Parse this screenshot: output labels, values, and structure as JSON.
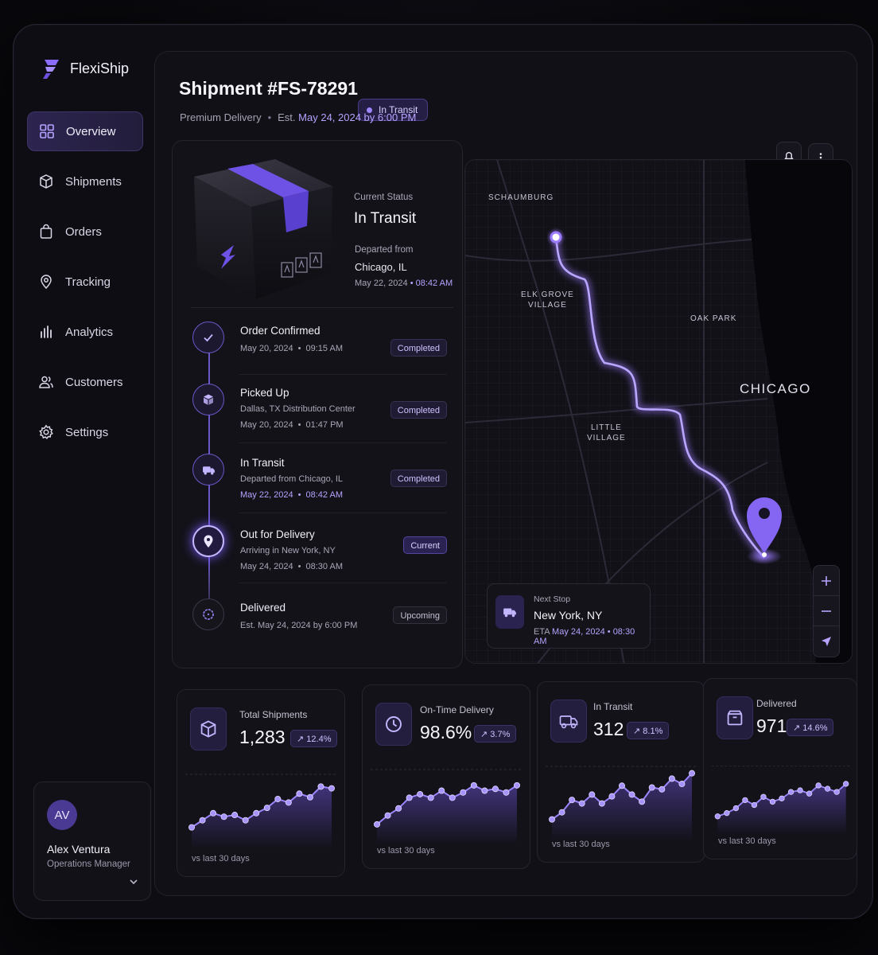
{
  "brand": {
    "name": "FlexiShip"
  },
  "nav": [
    {
      "label": "Overview",
      "icon": "grid-icon",
      "active": true
    },
    {
      "label": "Shipments",
      "icon": "cube-icon"
    },
    {
      "label": "Orders",
      "icon": "bag-icon"
    },
    {
      "label": "Tracking",
      "icon": "location-pin-icon"
    },
    {
      "label": "Analytics",
      "icon": "bar-chart-icon"
    },
    {
      "label": "Customers",
      "icon": "users-icon"
    },
    {
      "label": "Settings",
      "icon": "gear-icon"
    }
  ],
  "user": {
    "initials": "AV",
    "name": "Alex Ventura",
    "role": "Operations Manager"
  },
  "header": {
    "title": "Shipment #FS-78291",
    "status_badge": "In Transit",
    "service": "Premium Delivery",
    "est_prefix": "Est.",
    "est_date": "May 24, 2024 by 6:00 PM"
  },
  "summary": {
    "current_status_label": "Current Status",
    "current_status": "In Transit",
    "departed_label": "Departed from",
    "departed_city": "Chicago, IL",
    "departed_date": "May 22, 2024",
    "departed_time": "08:42 AM"
  },
  "timeline": [
    {
      "title": "Order Confirmed",
      "sub": "",
      "date": "May 20, 2024",
      "time": "09:15 AM",
      "badge": "Completed",
      "state": "completed",
      "icon": "check-icon"
    },
    {
      "title": "Picked Up",
      "sub": "Dallas, TX Distribution Center",
      "date": "May 20, 2024",
      "time": "01:47 PM",
      "badge": "Completed",
      "state": "completed",
      "icon": "package-icon"
    },
    {
      "title": "In Transit",
      "sub": "Departed from Chicago, IL",
      "date": "May 22, 2024",
      "time": "08:42 AM",
      "badge": "Completed",
      "state": "completed",
      "icon": "truck-icon"
    },
    {
      "title": "Out for Delivery",
      "sub": "Arriving in New York, NY",
      "date": "May 24, 2024",
      "time": "08:30 AM",
      "badge": "Current",
      "state": "current",
      "icon": "location-pin-icon"
    },
    {
      "title": "Delivered",
      "sub": "",
      "date": "Est. May 24, 2024 by 6:00 PM",
      "time": "",
      "badge": "Upcoming",
      "state": "upcoming",
      "icon": "dotted-circle-icon"
    }
  ],
  "map": {
    "labels": {
      "schaumburg": "SCHAUMBURG",
      "elk_grove": "ELK GROVE\nVILLAGE",
      "oak_park": "OAK PARK",
      "chicago": "CHICAGO",
      "little_village": "LITTLE\nVILLAGE"
    },
    "next_stop_label": "Next Stop",
    "next_stop_city": "New York, NY",
    "eta_prefix": "ETA",
    "eta_date": "May 24, 2024",
    "eta_time": "08:30 AM"
  },
  "stats": [
    {
      "label": "Total Shipments",
      "value": "1,283",
      "delta": "12.4%",
      "foot": "vs last 30  days",
      "icon": "cube-icon",
      "trend": [
        12,
        20,
        28,
        24,
        26,
        20,
        28,
        34,
        44,
        40,
        50,
        46,
        58,
        56
      ]
    },
    {
      "label": "On-Time Delivery",
      "value": "98.6%",
      "delta": "3.7%",
      "foot": "vs last 30  days",
      "icon": "clock-icon",
      "trend": [
        10,
        20,
        28,
        40,
        44,
        40,
        48,
        40,
        46,
        54,
        48,
        50,
        46,
        54
      ]
    },
    {
      "label": "In Transit",
      "value": "312",
      "delta": "8.1%",
      "foot": "vs last 30  days",
      "icon": "truck-icon",
      "trend": [
        12,
        20,
        34,
        30,
        40,
        30,
        38,
        50,
        40,
        32,
        48,
        46,
        58,
        52,
        64
      ]
    },
    {
      "label": "Delivered",
      "value": "971",
      "delta": "14.6%",
      "foot": "vs last 30  days",
      "icon": "package-icon",
      "trend": [
        10,
        14,
        20,
        30,
        24,
        34,
        28,
        32,
        40,
        42,
        38,
        48,
        44,
        40,
        50
      ]
    }
  ],
  "colors": {
    "accent": "#8b6cff",
    "accent_light": "#b6a3ff",
    "bg": "#0d0d13"
  }
}
